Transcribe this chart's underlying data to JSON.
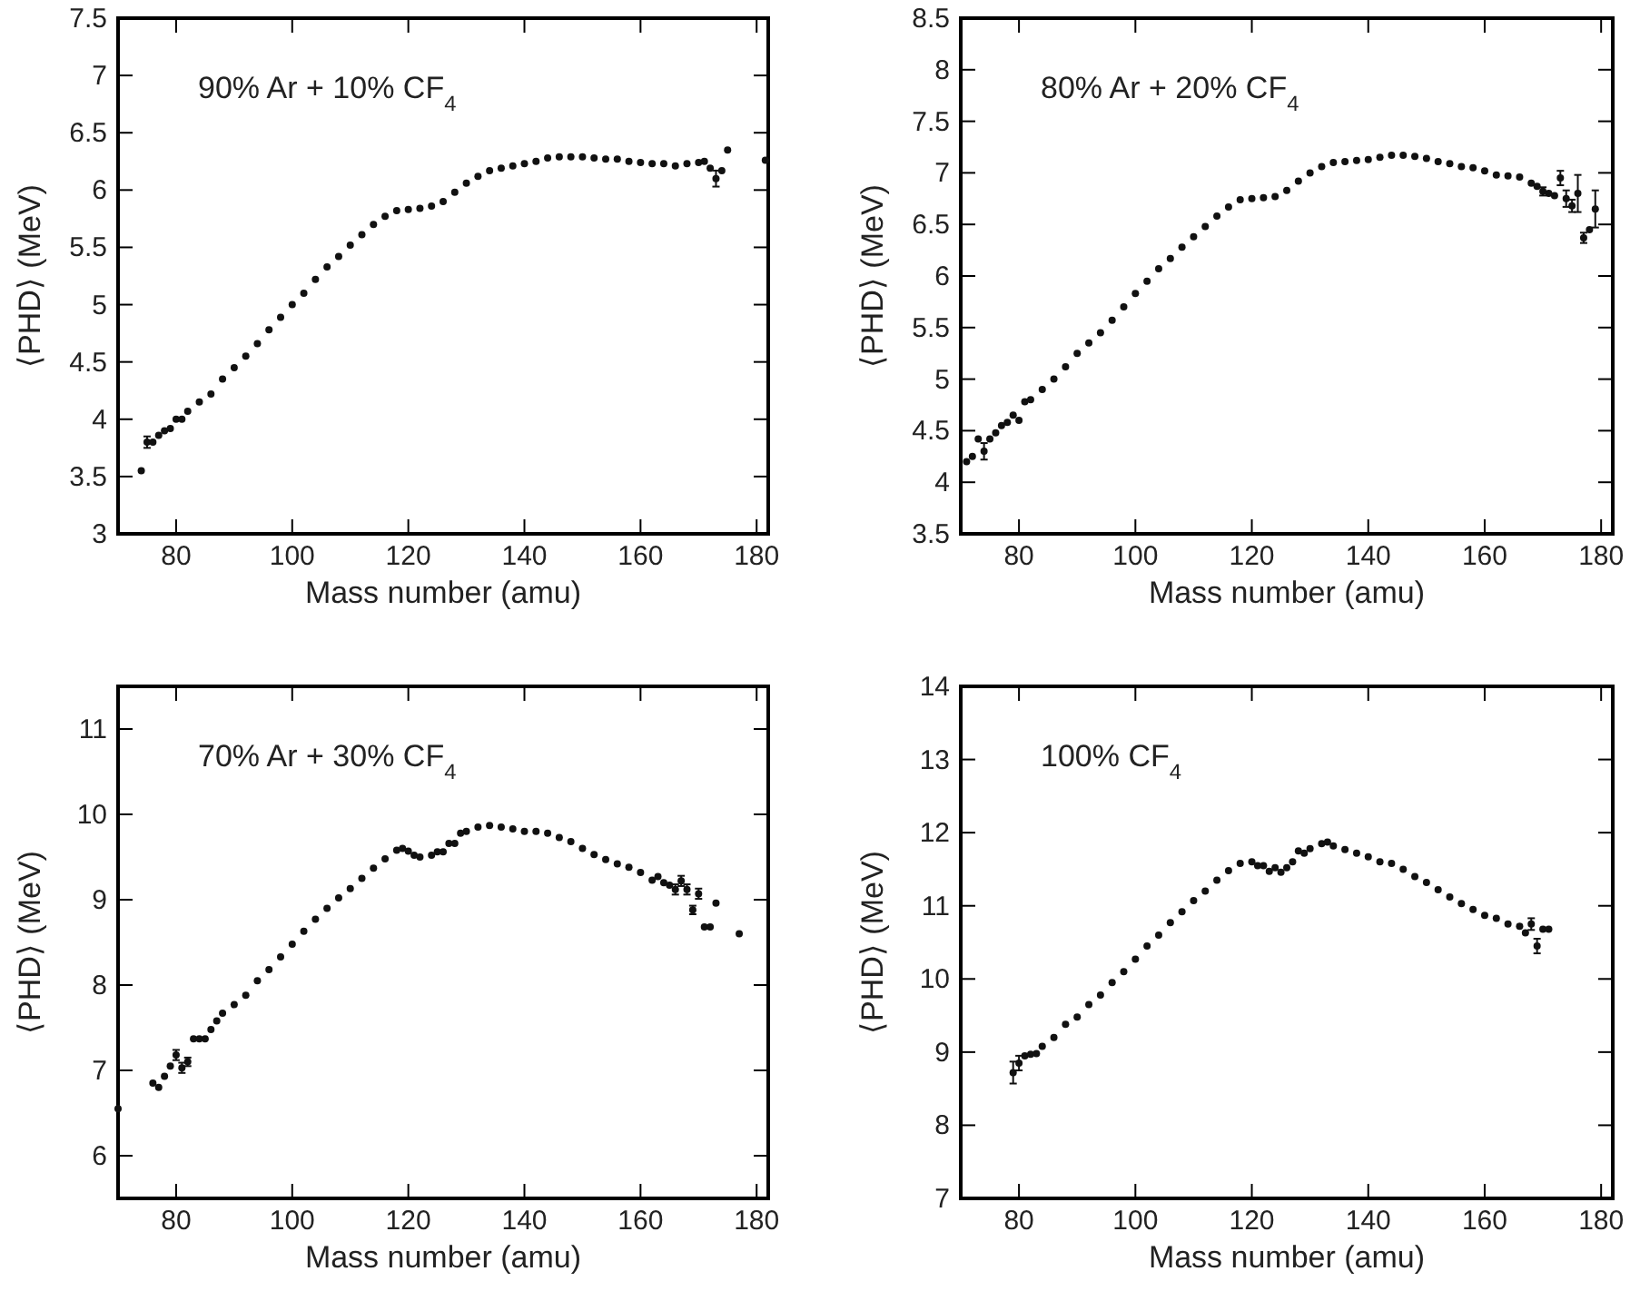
{
  "chart_data": [
    {
      "type": "scatter",
      "xlabel": "Mass number (amu)",
      "ylabel": "⟨PHD⟩ (MeV)",
      "annotations": [
        "90% Ar + 10% CF$_{4}$"
      ],
      "marker": "circle",
      "xlim": [
        70,
        182
      ],
      "xticks": [
        80,
        100,
        120,
        140,
        160,
        180
      ],
      "ylim": [
        3,
        7.5
      ],
      "yticks": [
        3,
        3.5,
        4,
        4.5,
        5,
        5.5,
        6,
        6.5,
        7,
        7.5
      ],
      "grid": false,
      "series": [
        {
          "color": "#111111",
          "x": [
            74,
            76,
            77,
            78,
            79,
            80,
            81,
            82,
            84,
            86,
            88,
            90,
            92,
            94,
            96,
            98,
            100,
            102,
            104,
            106,
            108,
            110,
            112,
            114,
            116,
            118,
            120,
            122,
            124,
            126,
            128,
            130,
            132,
            134,
            136,
            138,
            140,
            142,
            144,
            146,
            148,
            150,
            152,
            154,
            156,
            158,
            160,
            162,
            164,
            166,
            168,
            170,
            171,
            172,
            174,
            175,
            181.5
          ],
          "values": [
            3.55,
            3.8,
            3.86,
            3.9,
            3.92,
            4.0,
            4.0,
            4.07,
            4.15,
            4.22,
            4.35,
            4.45,
            4.55,
            4.66,
            4.78,
            4.89,
            5.0,
            5.1,
            5.22,
            5.33,
            5.42,
            5.52,
            5.61,
            5.7,
            5.77,
            5.82,
            5.83,
            5.84,
            5.86,
            5.9,
            5.98,
            6.06,
            6.12,
            6.17,
            6.19,
            6.21,
            6.23,
            6.25,
            6.28,
            6.29,
            6.29,
            6.29,
            6.28,
            6.27,
            6.27,
            6.25,
            6.24,
            6.23,
            6.23,
            6.21,
            6.23,
            6.24,
            6.25,
            6.19,
            6.17,
            6.35,
            6.26
          ]
        },
        {
          "color": "#111111",
          "x": [
            75,
            173
          ],
          "values": [
            3.8,
            6.1
          ],
          "errors": [
            0.05,
            0.07
          ]
        }
      ]
    },
    {
      "type": "scatter",
      "xlabel": "Mass number (amu)",
      "ylabel": "⟨PHD⟩ (MeV)",
      "annotations": [
        "80% Ar + 20% CF$_{4}$"
      ],
      "marker": "circle",
      "xlim": [
        70,
        182
      ],
      "xticks": [
        80,
        100,
        120,
        140,
        160,
        180
      ],
      "ylim": [
        3.5,
        8.5
      ],
      "yticks": [
        3.5,
        4,
        4.5,
        5,
        5.5,
        6,
        6.5,
        7,
        7.5,
        8,
        8.5
      ],
      "grid": false,
      "series": [
        {
          "color": "#111111",
          "x": [
            71,
            72,
            73,
            75,
            76,
            77,
            78,
            79,
            80,
            81,
            82,
            84,
            86,
            88,
            90,
            92,
            94,
            96,
            98,
            100,
            102,
            104,
            106,
            108,
            110,
            112,
            114,
            116,
            118,
            120,
            122,
            124,
            126,
            128,
            130,
            132,
            134,
            136,
            138,
            140,
            142,
            144,
            146,
            148,
            150,
            152,
            154,
            156,
            158,
            160,
            162,
            164,
            166,
            168,
            169,
            171,
            172,
            178
          ],
          "values": [
            4.2,
            4.25,
            4.42,
            4.42,
            4.48,
            4.55,
            4.58,
            4.65,
            4.6,
            4.78,
            4.8,
            4.9,
            5.0,
            5.12,
            5.25,
            5.35,
            5.45,
            5.57,
            5.7,
            5.83,
            5.95,
            6.07,
            6.17,
            6.28,
            6.38,
            6.48,
            6.58,
            6.67,
            6.74,
            6.75,
            6.76,
            6.77,
            6.83,
            6.92,
            7.0,
            7.06,
            7.1,
            7.11,
            7.12,
            7.13,
            7.15,
            7.17,
            7.17,
            7.16,
            7.14,
            7.11,
            7.09,
            7.06,
            7.05,
            7.02,
            6.98,
            6.97,
            6.96,
            6.9,
            6.87,
            6.8,
            6.78,
            6.45
          ]
        },
        {
          "color": "#111111",
          "x": [
            74,
            170,
            173,
            174,
            175,
            176,
            177,
            179
          ],
          "values": [
            4.3,
            6.82,
            6.95,
            6.75,
            6.68,
            6.8,
            6.37,
            6.65
          ],
          "errors": [
            0.08,
            0.04,
            0.07,
            0.08,
            0.06,
            0.18,
            0.05,
            0.18
          ]
        }
      ]
    },
    {
      "type": "scatter",
      "xlabel": "Mass number (amu)",
      "ylabel": "⟨PHD⟩ (MeV)",
      "annotations": [
        "70% Ar + 30% CF$_{4}$"
      ],
      "marker": "circle",
      "xlim": [
        70,
        182
      ],
      "xticks": [
        80,
        100,
        120,
        140,
        160,
        180
      ],
      "ylim": [
        5.5,
        11.5
      ],
      "yticks": [
        6,
        7,
        8,
        9,
        10,
        11
      ],
      "grid": false,
      "series": [
        {
          "color": "#111111",
          "x": [
            70,
            76,
            77,
            78,
            79,
            83,
            84,
            85,
            86,
            87,
            88,
            90,
            92,
            94,
            96,
            98,
            100,
            102,
            104,
            106,
            108,
            110,
            112,
            114,
            116,
            118,
            119,
            120,
            121,
            122,
            124,
            125,
            126,
            127,
            128,
            129,
            130,
            132,
            134,
            136,
            138,
            140,
            142,
            144,
            146,
            148,
            150,
            152,
            154,
            156,
            158,
            160,
            162,
            163,
            164,
            165,
            171,
            172,
            173,
            177
          ],
          "values": [
            6.55,
            6.85,
            6.8,
            6.93,
            7.05,
            7.37,
            7.37,
            7.37,
            7.48,
            7.58,
            7.67,
            7.77,
            7.88,
            8.05,
            8.18,
            8.33,
            8.48,
            8.63,
            8.77,
            8.9,
            9.02,
            9.13,
            9.25,
            9.37,
            9.48,
            9.58,
            9.6,
            9.57,
            9.52,
            9.5,
            9.52,
            9.56,
            9.56,
            9.66,
            9.66,
            9.78,
            9.8,
            9.85,
            9.87,
            9.85,
            9.83,
            9.8,
            9.8,
            9.78,
            9.73,
            9.68,
            9.6,
            9.53,
            9.47,
            9.42,
            9.38,
            9.32,
            9.23,
            9.27,
            9.2,
            9.17,
            8.68,
            8.68,
            8.96,
            8.6
          ]
        },
        {
          "color": "#111111",
          "x": [
            80,
            81,
            82,
            166,
            167,
            168,
            169,
            170
          ],
          "values": [
            7.18,
            7.03,
            7.1,
            9.12,
            9.22,
            9.12,
            8.88,
            9.07
          ],
          "errors": [
            0.06,
            0.06,
            0.05,
            0.06,
            0.06,
            0.06,
            0.05,
            0.06
          ]
        }
      ]
    },
    {
      "type": "scatter",
      "xlabel": "Mass number (amu)",
      "ylabel": "⟨PHD⟩ (MeV)",
      "annotations": [
        "100% CF$_{4}$"
      ],
      "marker": "circle",
      "xlim": [
        70,
        182
      ],
      "xticks": [
        80,
        100,
        120,
        140,
        160,
        180
      ],
      "ylim": [
        7,
        14
      ],
      "yticks": [
        7,
        8,
        9,
        10,
        11,
        12,
        13,
        14
      ],
      "grid": false,
      "series": [
        {
          "color": "#111111",
          "x": [
            81,
            82,
            83,
            84,
            86,
            88,
            90,
            92,
            94,
            96,
            98,
            100,
            102,
            104,
            106,
            108,
            110,
            112,
            114,
            116,
            118,
            120,
            121,
            122,
            123,
            124,
            125,
            126,
            127,
            128,
            129,
            130,
            132,
            133,
            134,
            136,
            138,
            140,
            142,
            144,
            146,
            148,
            150,
            152,
            154,
            156,
            158,
            160,
            162,
            164,
            166,
            167,
            170,
            171
          ],
          "values": [
            8.95,
            8.97,
            8.98,
            9.08,
            9.2,
            9.38,
            9.48,
            9.65,
            9.78,
            9.95,
            10.1,
            10.27,
            10.45,
            10.6,
            10.77,
            10.92,
            11.07,
            11.2,
            11.35,
            11.48,
            11.58,
            11.6,
            11.55,
            11.55,
            11.47,
            11.52,
            11.46,
            11.52,
            11.6,
            11.75,
            11.72,
            11.78,
            11.85,
            11.87,
            11.82,
            11.77,
            11.72,
            11.67,
            11.6,
            11.58,
            11.5,
            11.4,
            11.32,
            11.22,
            11.12,
            11.03,
            10.95,
            10.87,
            10.83,
            10.75,
            10.72,
            10.63,
            10.68,
            10.68
          ]
        },
        {
          "color": "#111111",
          "x": [
            79,
            80,
            168,
            169
          ],
          "values": [
            8.72,
            8.85,
            10.75,
            10.45
          ],
          "errors": [
            0.15,
            0.1,
            0.08,
            0.1
          ]
        }
      ]
    }
  ]
}
